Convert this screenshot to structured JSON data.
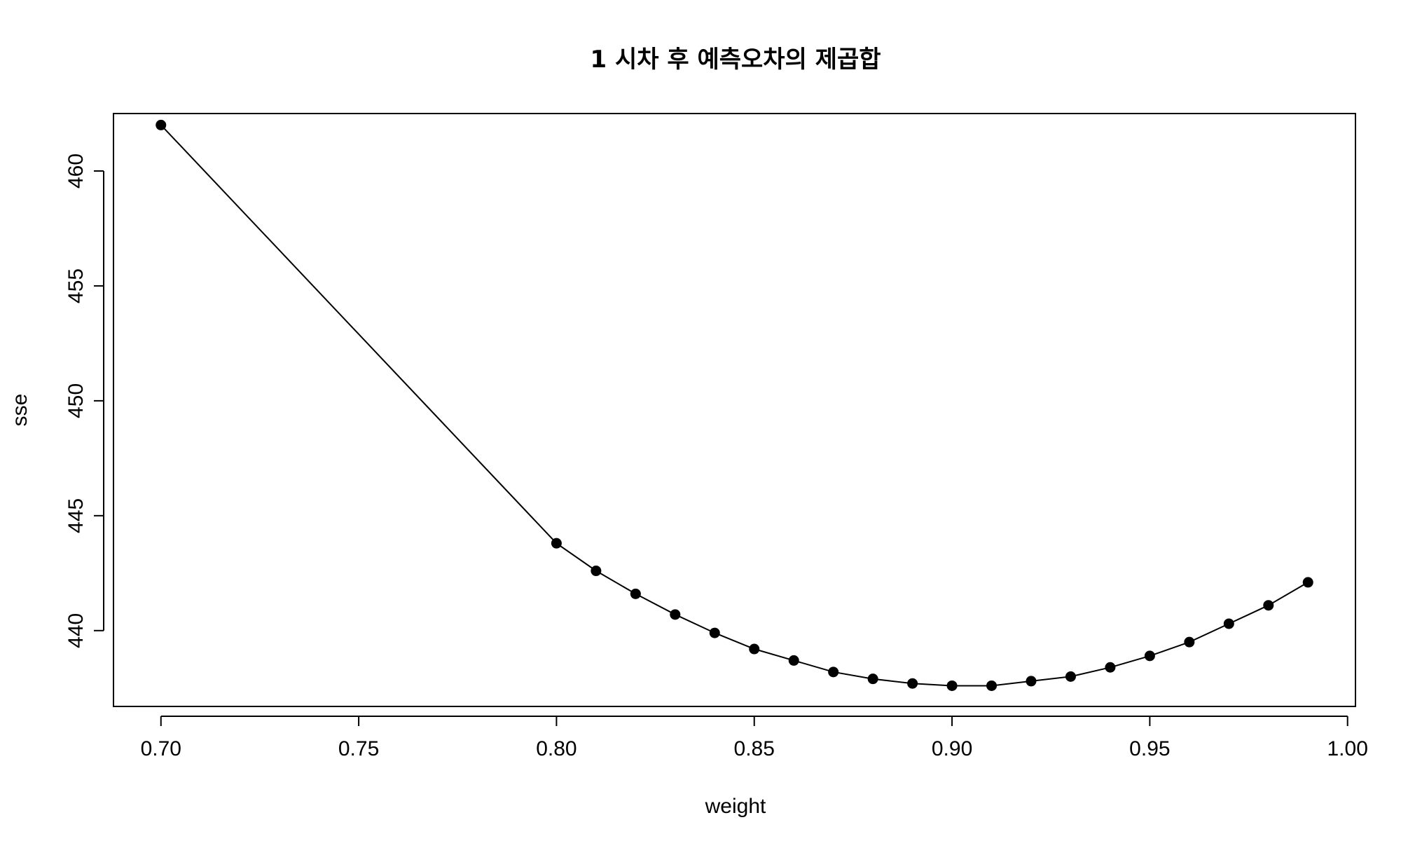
{
  "chart_data": {
    "type": "line",
    "title": "1 시차 후 예측오차의 제곱합",
    "xlabel": "weight",
    "ylabel": "sse",
    "xlim": [
      0.688,
      1.002
    ],
    "ylim": [
      436.7,
      462.5
    ],
    "x_ticks": [
      0.7,
      0.75,
      0.8,
      0.85,
      0.9,
      0.95,
      1.0
    ],
    "x_tick_labels": [
      "0.70",
      "0.75",
      "0.80",
      "0.85",
      "0.90",
      "0.95",
      "1.00"
    ],
    "y_ticks": [
      440,
      445,
      450,
      455,
      460
    ],
    "y_tick_labels": [
      "440",
      "445",
      "450",
      "455",
      "460"
    ],
    "grid": false,
    "line_color": "#000000",
    "point_color": "#000000",
    "x": [
      0.7,
      0.8,
      0.81,
      0.82,
      0.83,
      0.84,
      0.85,
      0.86,
      0.87,
      0.88,
      0.89,
      0.9,
      0.91,
      0.92,
      0.93,
      0.94,
      0.95,
      0.96,
      0.97,
      0.98,
      0.99
    ],
    "y": [
      462.0,
      443.8,
      442.6,
      441.6,
      440.7,
      439.9,
      439.2,
      438.7,
      438.2,
      437.9,
      437.7,
      437.6,
      437.6,
      437.8,
      438.0,
      438.4,
      438.9,
      439.5,
      440.3,
      441.1,
      442.1
    ]
  }
}
